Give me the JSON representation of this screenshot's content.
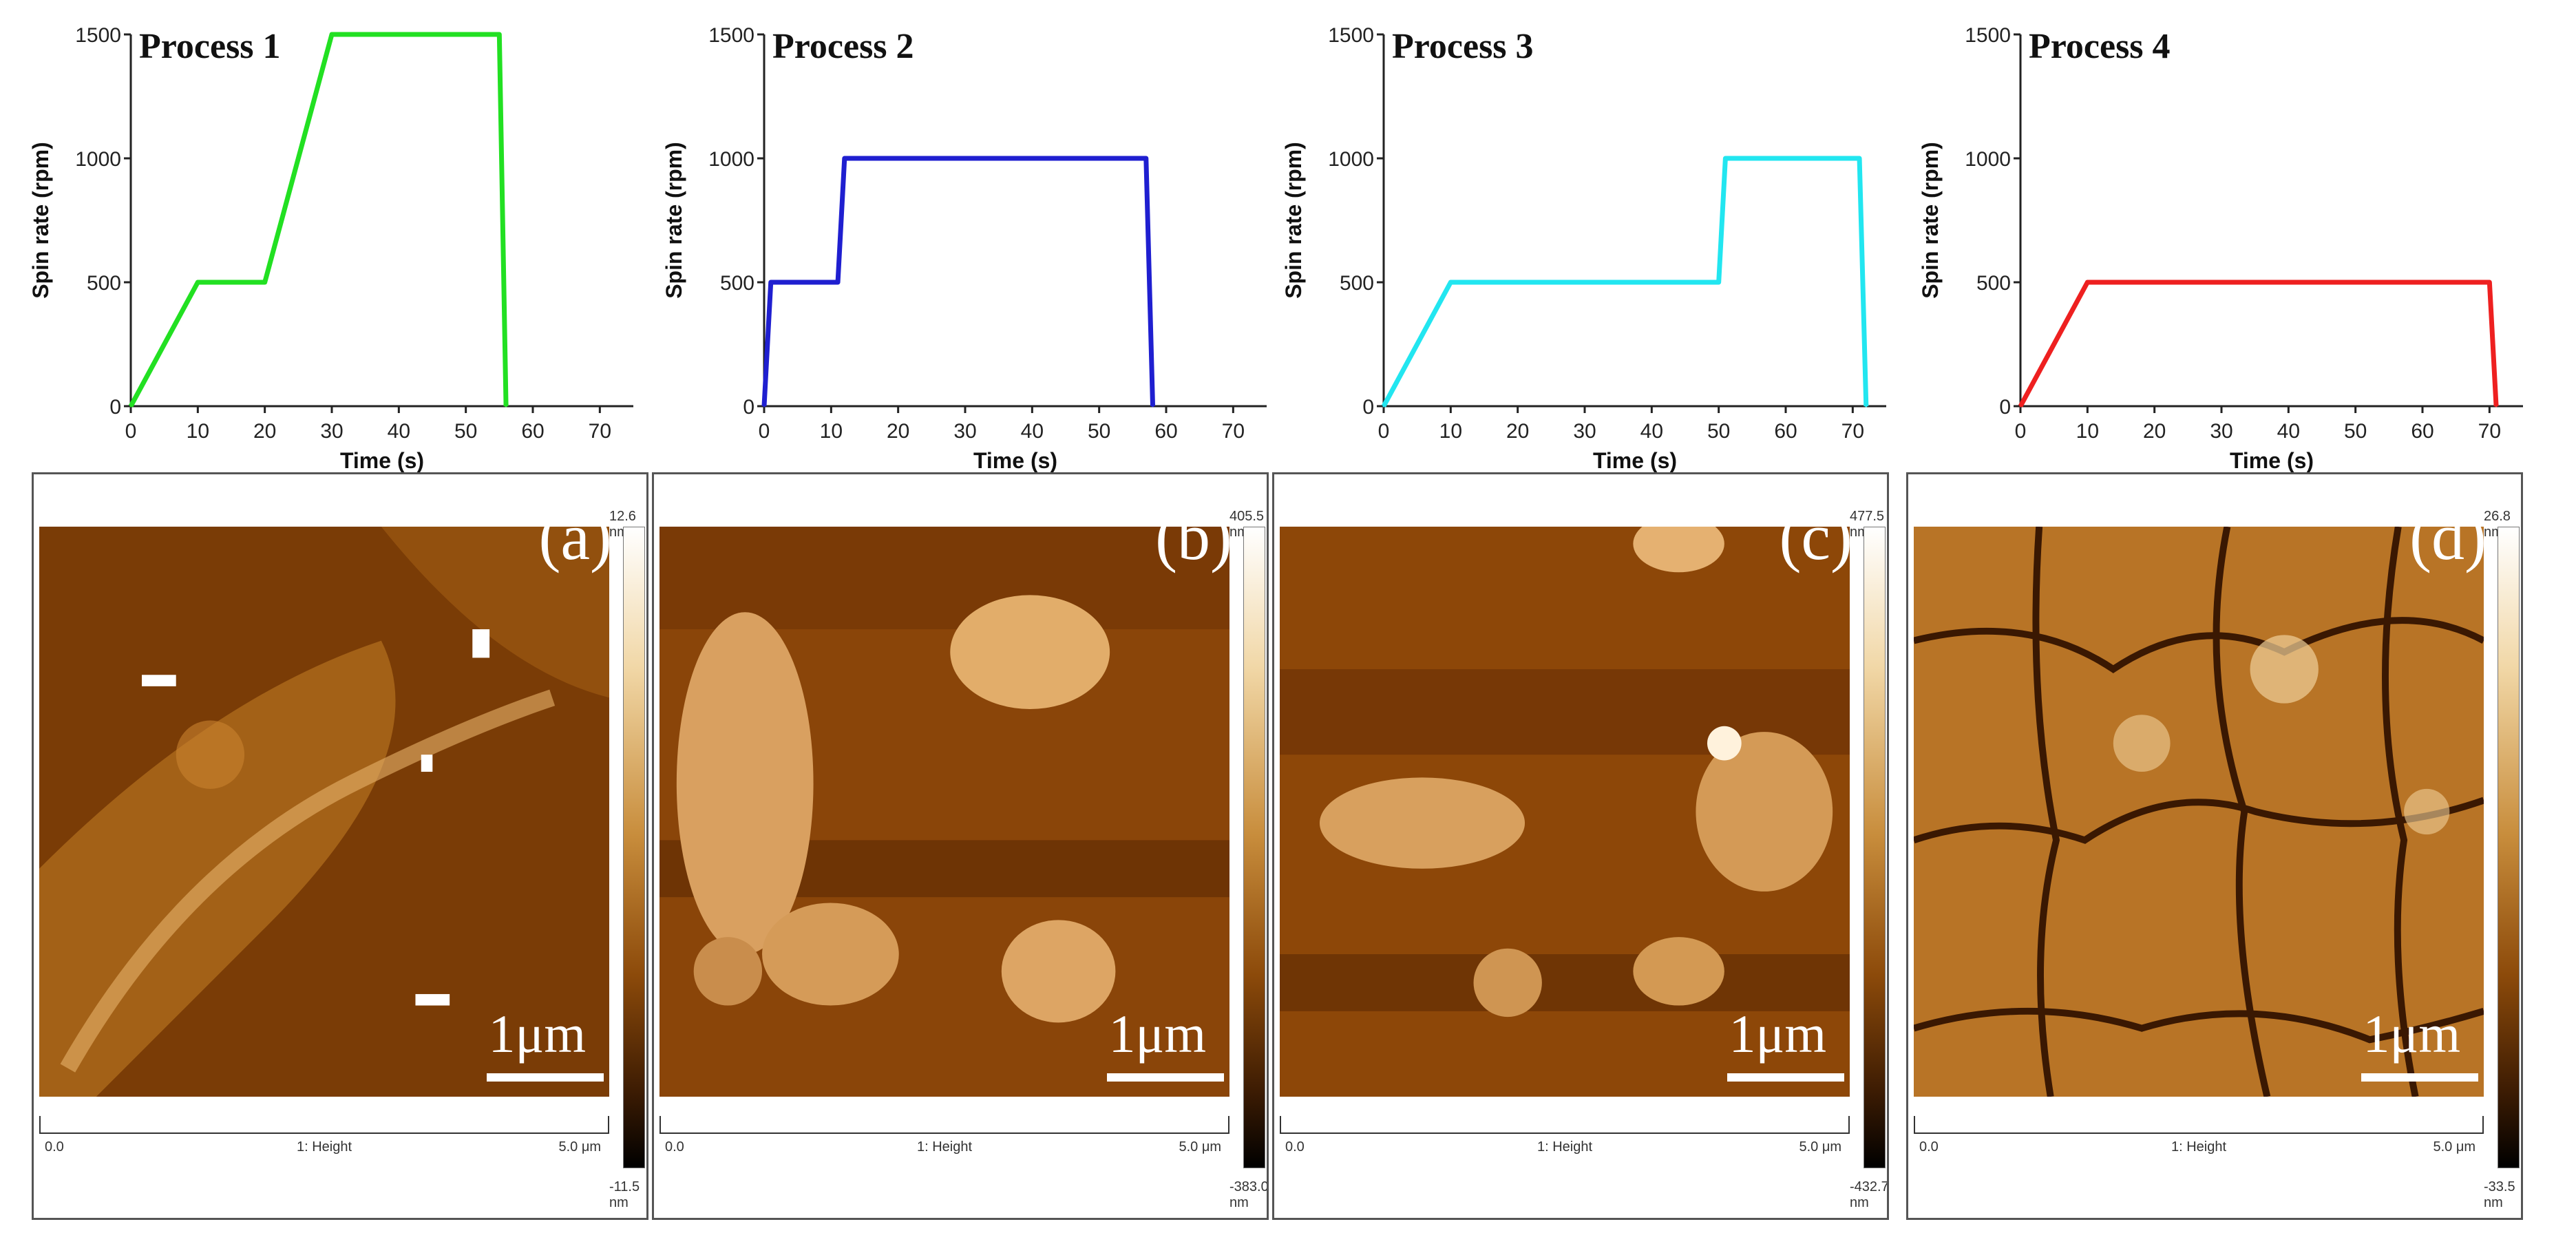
{
  "chart_data": [
    {
      "type": "line",
      "title": "Process 1",
      "xlabel": "Time (s)",
      "ylabel": "Spin rate (rpm)",
      "color": "#22e022",
      "xlim": [
        0,
        75
      ],
      "ylim": [
        0,
        1500
      ],
      "xticks": [
        0,
        10,
        20,
        30,
        40,
        50,
        60,
        70
      ],
      "yticks": [
        0,
        500,
        1000,
        1500
      ],
      "x": [
        0,
        10,
        20,
        30,
        55,
        56
      ],
      "y": [
        0,
        500,
        500,
        1500,
        1500,
        0
      ]
    },
    {
      "type": "line",
      "title": "Process 2",
      "xlabel": "Time (s)",
      "ylabel": "Spin rate (rpm)",
      "color": "#1f1fd0",
      "xlim": [
        0,
        75
      ],
      "ylim": [
        0,
        1500
      ],
      "xticks": [
        0,
        10,
        20,
        30,
        40,
        50,
        60,
        70
      ],
      "yticks": [
        0,
        500,
        1000,
        1500
      ],
      "x": [
        0,
        1,
        11,
        12,
        57,
        58
      ],
      "y": [
        0,
        500,
        500,
        1000,
        1000,
        0
      ]
    },
    {
      "type": "line",
      "title": "Process 3",
      "xlabel": "Time (s)",
      "ylabel": "Spin rate (rpm)",
      "color": "#22e6f0",
      "xlim": [
        0,
        75
      ],
      "ylim": [
        0,
        1500
      ],
      "xticks": [
        0,
        10,
        20,
        30,
        40,
        50,
        60,
        70
      ],
      "yticks": [
        0,
        500,
        1000,
        1500
      ],
      "x": [
        0,
        10,
        50,
        51,
        71,
        72
      ],
      "y": [
        0,
        500,
        500,
        1000,
        1000,
        0
      ]
    },
    {
      "type": "line",
      "title": "Process 4",
      "xlabel": "Time (s)",
      "ylabel": "Spin rate (rpm)",
      "color": "#ee2020",
      "xlim": [
        0,
        75
      ],
      "ylim": [
        0,
        1500
      ],
      "xticks": [
        0,
        10,
        20,
        30,
        40,
        50,
        60,
        70
      ],
      "yticks": [
        0,
        500,
        1000,
        1500
      ],
      "x": [
        0,
        10,
        70,
        71
      ],
      "y": [
        0,
        500,
        500,
        0
      ]
    }
  ],
  "afm": [
    {
      "letter": "(a)",
      "scale": "1μm",
      "max": "12.6 nm",
      "min": "-11.5 nm",
      "start": "0.0",
      "channel": "1: Height",
      "end": "5.0 μm"
    },
    {
      "letter": "(b)",
      "scale": "1μm",
      "max": "405.5 nm",
      "min": "-383.0 nm",
      "start": "0.0",
      "channel": "1: Height",
      "end": "5.0 μm"
    },
    {
      "letter": "(c)",
      "scale": "1μm",
      "max": "477.5 nm",
      "min": "-432.7 nm",
      "start": "0.0",
      "channel": "1: Height",
      "end": "5.0 μm"
    },
    {
      "letter": "(d)",
      "scale": "1μm",
      "max": "26.8 nm",
      "min": "-33.5 nm",
      "start": "0.0",
      "channel": "1: Height",
      "end": "5.0 μm"
    }
  ]
}
